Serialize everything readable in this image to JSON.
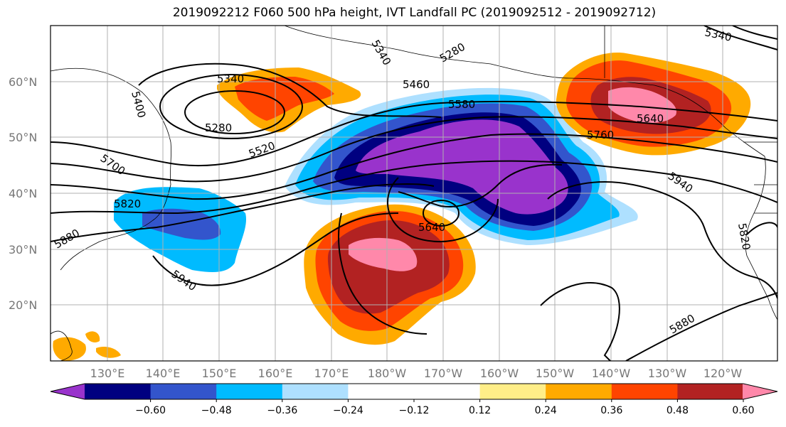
{
  "title": "2019092212 F060 500 hPa height, IVT Landfall PC (2019092512 - 2019092712)",
  "lat_labels": [
    "60°N",
    "50°N",
    "40°N",
    "30°N",
    "20°N"
  ],
  "lon_labels": [
    "130°E",
    "140°E",
    "150°E",
    "160°E",
    "170°E",
    "180°W",
    "170°W",
    "160°W",
    "150°W",
    "140°W",
    "130°W",
    "120°W"
  ],
  "contour_labels": [
    "5340",
    "5340",
    "5400",
    "5280",
    "5520",
    "5460",
    "5580",
    "5700",
    "5820",
    "5880",
    "5640",
    "5940",
    "5940",
    "5640",
    "5760",
    "5820",
    "5880",
    "5280",
    "5340"
  ],
  "colorbar": {
    "ticks": [
      "−0.60",
      "−0.48",
      "−0.36",
      "−0.24",
      "−0.12",
      "0.12",
      "0.24",
      "0.36",
      "0.48",
      "0.60"
    ],
    "colors": [
      "#9933cc",
      "#000080",
      "#3355cc",
      "#00bbff",
      "#aee0ff",
      "#ffffff",
      "#ffffff",
      "#ffee88",
      "#ffaa00",
      "#ff4400",
      "#b22222",
      "#ff88aa"
    ]
  }
}
